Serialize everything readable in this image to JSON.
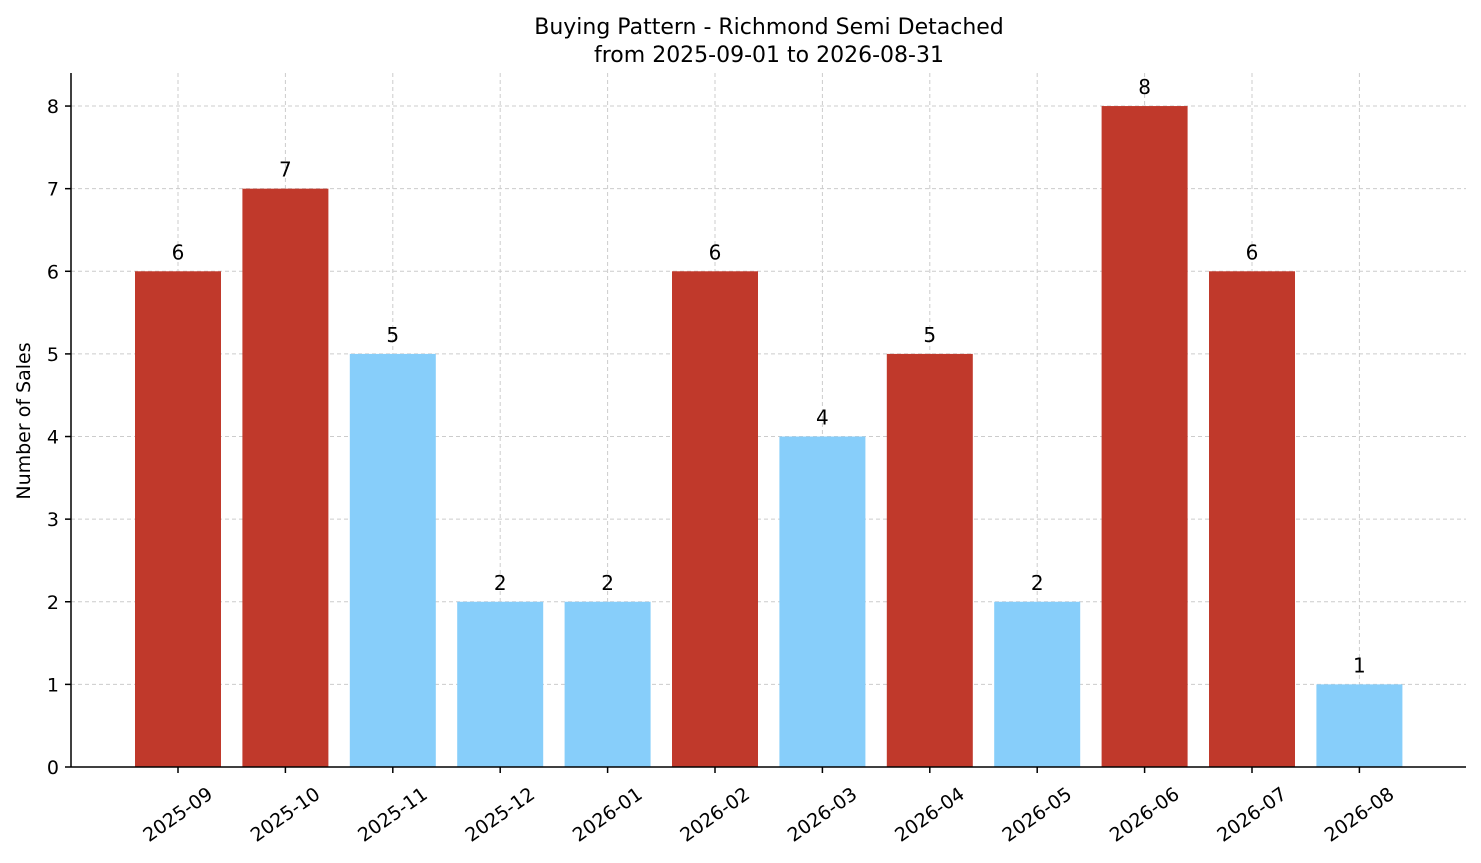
{
  "chart_data": {
    "type": "bar",
    "title": "Buying Pattern - Richmond Semi Detached",
    "subtitle": "from 2025-09-01 to 2026-08-31",
    "xlabel": "",
    "ylabel": "Number of Sales",
    "ylim": [
      0,
      8.4
    ],
    "yticks": [
      0,
      1,
      2,
      3,
      4,
      5,
      6,
      7,
      8
    ],
    "grid": true,
    "categories": [
      "2025-09",
      "2025-10",
      "2025-11",
      "2025-12",
      "2026-01",
      "2026-02",
      "2026-03",
      "2026-04",
      "2026-05",
      "2026-06",
      "2026-07",
      "2026-08"
    ],
    "values": [
      6,
      7,
      5,
      2,
      2,
      6,
      4,
      5,
      2,
      8,
      6,
      1
    ],
    "bar_colors": [
      "#c0392b",
      "#c0392b",
      "#87cefa",
      "#87cefa",
      "#87cefa",
      "#c0392b",
      "#87cefa",
      "#c0392b",
      "#87cefa",
      "#c0392b",
      "#c0392b",
      "#87cefa"
    ]
  }
}
